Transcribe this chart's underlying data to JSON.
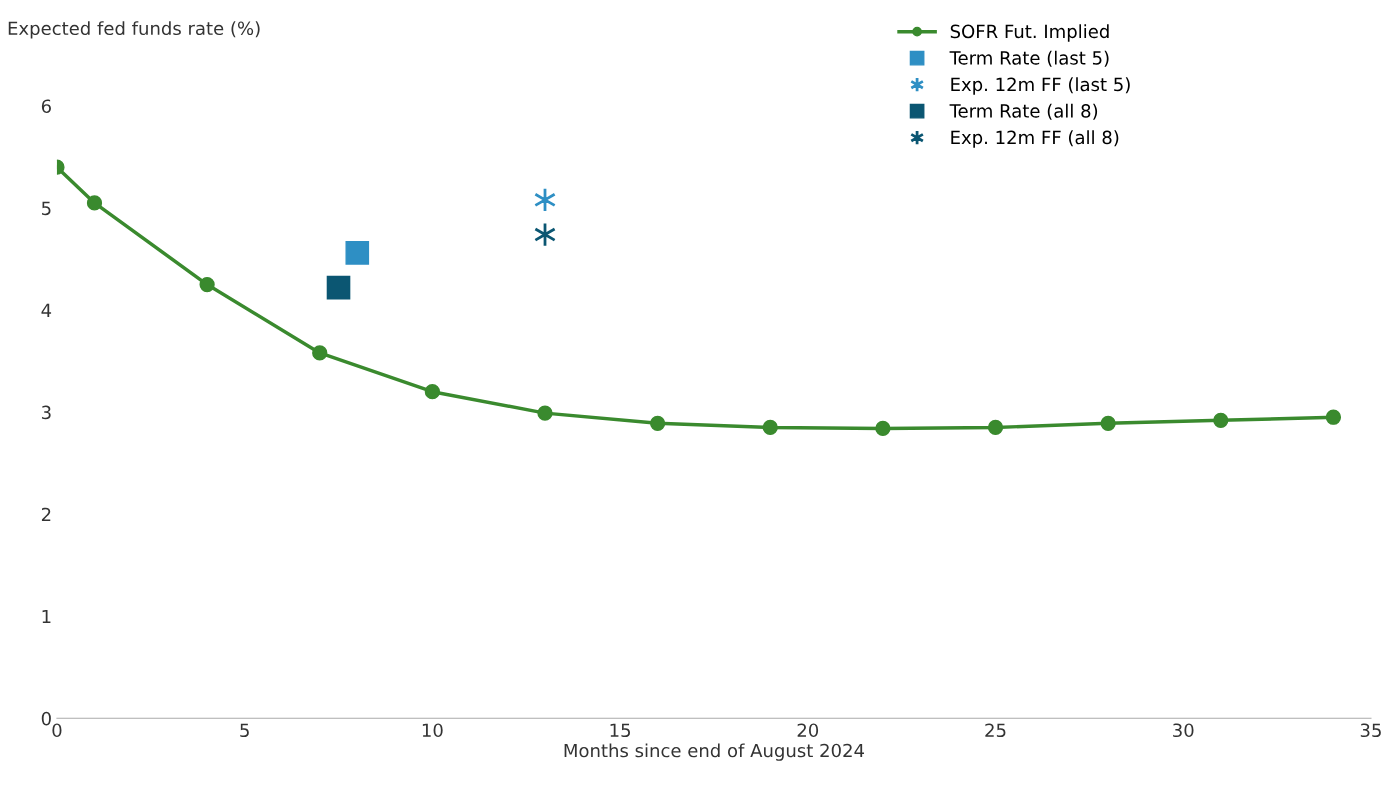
{
  "chart_data": {
    "type": "line",
    "xlabel": "Months since end of August 2024",
    "ylabel": "Expected fed funds rate (%)",
    "xlim": [
      0,
      35
    ],
    "xticks": [
      0,
      5,
      10,
      15,
      20,
      25,
      30,
      35
    ],
    "ylim": [
      0,
      6
    ],
    "yticks": [
      0,
      1,
      2,
      3,
      4,
      5,
      6
    ],
    "grid": false,
    "legend": "top right",
    "series": [
      {
        "name": "SOFR Fut. Implied",
        "color": "#3a8a2e",
        "marker": "circle",
        "x": [
          0,
          1,
          4,
          7,
          10,
          13,
          16,
          19,
          22,
          25,
          28,
          31,
          34
        ],
        "values": [
          5.4,
          5.05,
          4.25,
          3.58,
          3.2,
          2.99,
          2.89,
          2.85,
          2.84,
          2.85,
          2.89,
          2.92,
          2.95
        ]
      },
      {
        "name": "Term Rate (last 5)",
        "type": "scatter",
        "color": "#2e8fc4",
        "marker": "square",
        "x": [
          8.0
        ],
        "values": [
          4.56
        ]
      },
      {
        "name": "Exp. 12m FF (last 5)",
        "type": "scatter",
        "color": "#2e8fc4",
        "marker": "cross",
        "x": [
          13.0
        ],
        "values": [
          5.08
        ]
      },
      {
        "name": "Term Rate (all 8)",
        "type": "scatter",
        "color": "#0b5672",
        "marker": "square",
        "x": [
          7.5
        ],
        "values": [
          4.22
        ]
      },
      {
        "name": "Exp. 12m FF (all 8)",
        "type": "scatter",
        "color": "#0b5672",
        "marker": "cross",
        "x": [
          13.0
        ],
        "values": [
          4.74
        ]
      }
    ]
  }
}
